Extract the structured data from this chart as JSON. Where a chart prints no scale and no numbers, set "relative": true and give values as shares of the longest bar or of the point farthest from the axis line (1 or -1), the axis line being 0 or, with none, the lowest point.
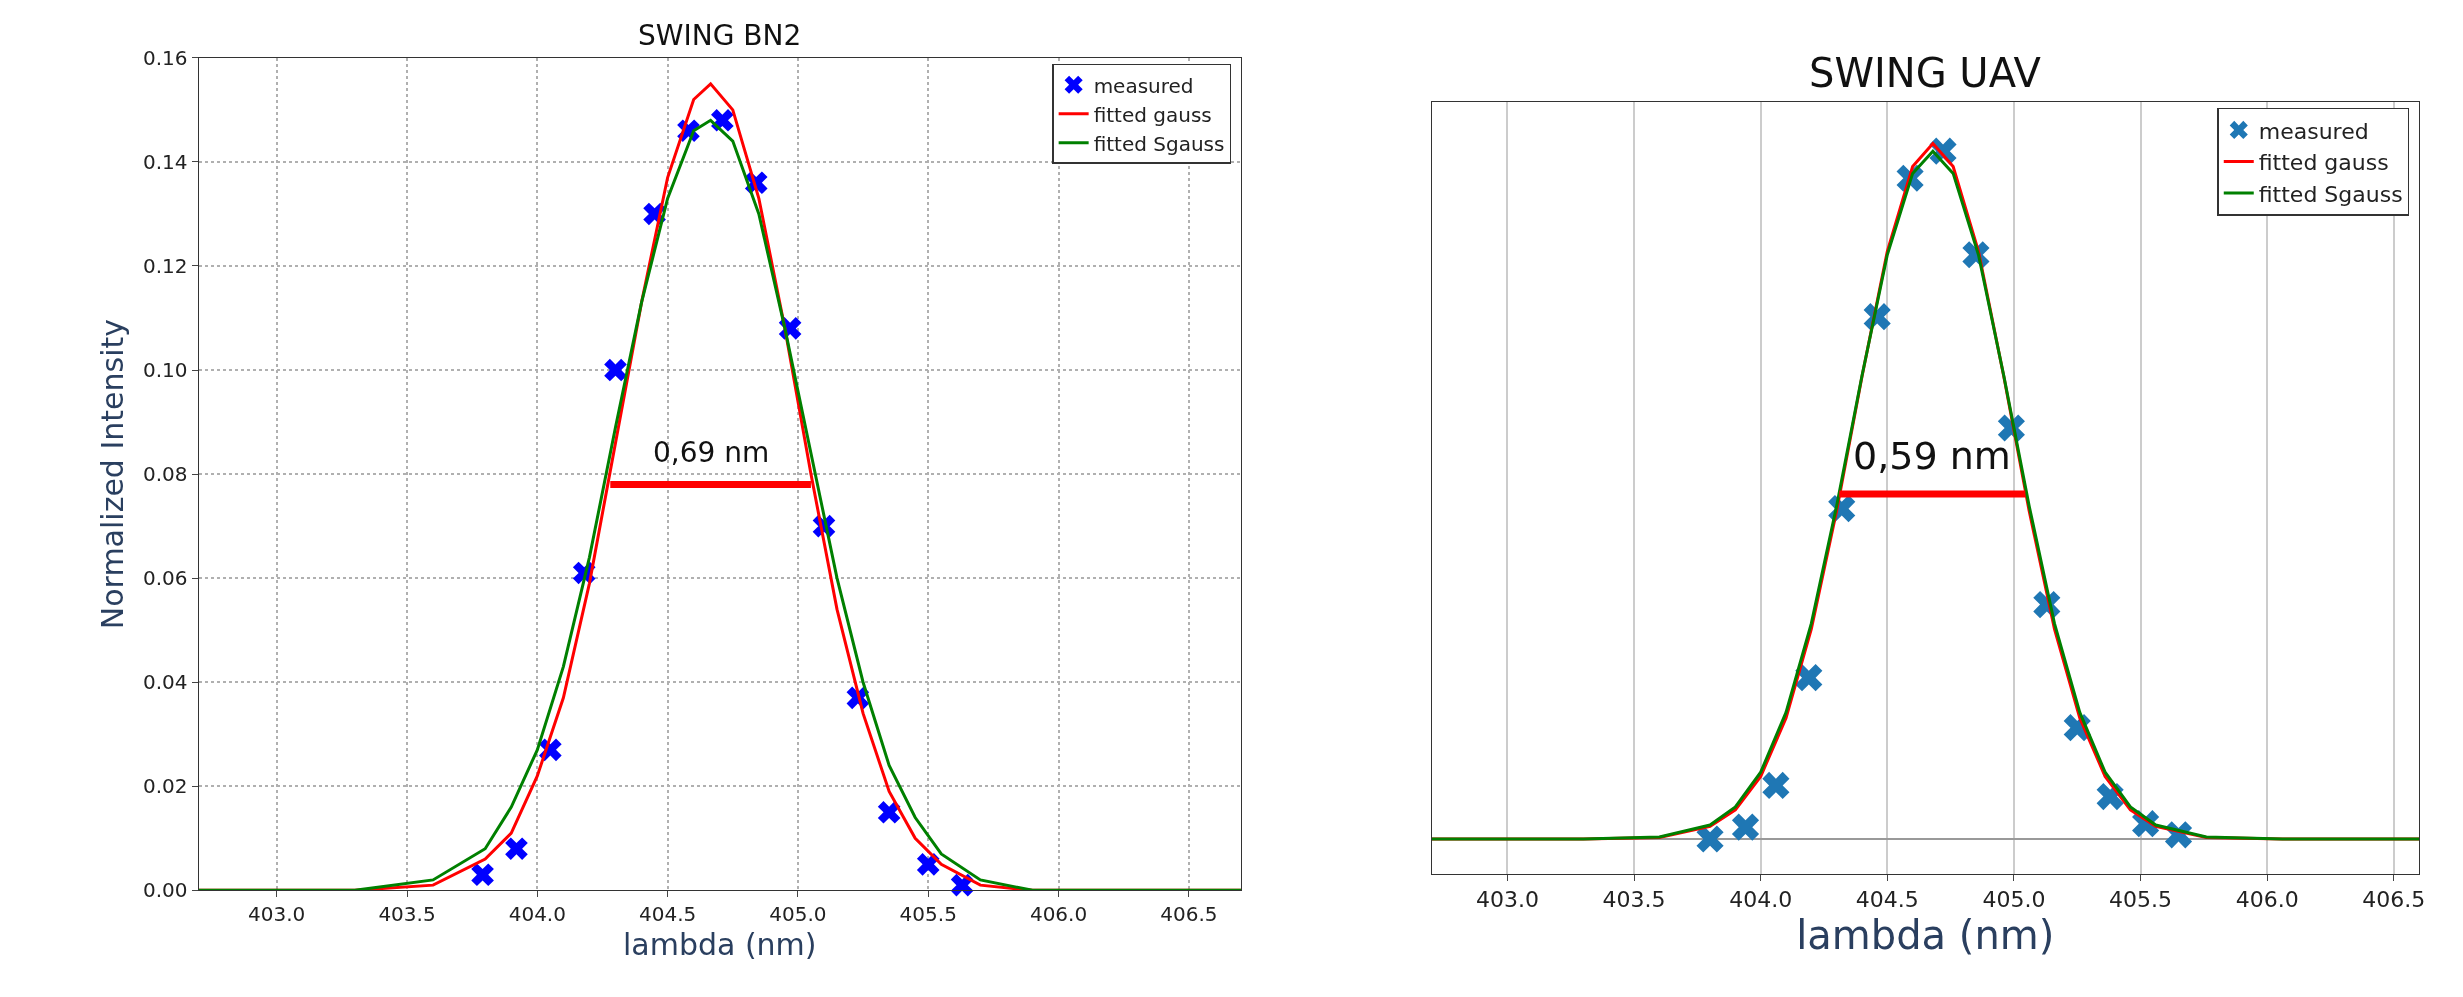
{
  "chart_data": [
    {
      "type": "scatter",
      "title": "SWING BN2",
      "xlabel": "lambda (nm)",
      "ylabel": "Normalized Intensity",
      "xlim": [
        402.7,
        406.7
      ],
      "ylim": [
        0,
        0.16
      ],
      "xticks": [
        {
          "value": 403,
          "label": "403.0"
        },
        {
          "value": 403.5,
          "label": "403.5"
        },
        {
          "value": 404,
          "label": "404.0"
        },
        {
          "value": 404.5,
          "label": "404.5"
        },
        {
          "value": 405,
          "label": "405.0"
        },
        {
          "value": 405.5,
          "label": "405.5"
        },
        {
          "value": 406,
          "label": "406.0"
        },
        {
          "value": 406.5,
          "label": "406.5"
        }
      ],
      "yticks": [
        {
          "value": 0,
          "label": "0.00"
        },
        {
          "value": 0.02,
          "label": "0.02"
        },
        {
          "value": 0.04,
          "label": "0.04"
        },
        {
          "value": 0.06,
          "label": "0.06"
        },
        {
          "value": 0.08,
          "label": "0.08"
        },
        {
          "value": 0.1,
          "label": "0.10"
        },
        {
          "value": 0.12,
          "label": "0.12"
        },
        {
          "value": 0.14,
          "label": "0.14"
        },
        {
          "value": 0.16,
          "label": "0.16"
        }
      ],
      "grid": true,
      "legend": "top right",
      "annotations": [
        "0,69 nm"
      ],
      "series": [
        {
          "name": "measured",
          "marker": "cross",
          "color": "#0000ff",
          "x": [
            403.79,
            403.92,
            404.05,
            404.18,
            404.3,
            404.45,
            404.58,
            404.71,
            404.84,
            404.97,
            405.1,
            405.23,
            405.35,
            405.5,
            405.63
          ],
          "values": [
            0.003,
            0.008,
            0.027,
            0.061,
            0.1,
            0.13,
            0.146,
            0.148,
            0.136,
            0.108,
            0.07,
            0.037,
            0.015,
            0.005,
            0.001
          ]
        },
        {
          "name": "fitted gauss",
          "type": "line",
          "color": "#ff0000",
          "x": [
            402.7,
            403.3,
            403.6,
            403.8,
            403.9,
            404.0,
            404.1,
            404.2,
            404.3,
            404.4,
            404.5,
            404.6,
            404.665,
            404.75,
            404.85,
            404.95,
            405.05,
            405.15,
            405.25,
            405.35,
            405.45,
            405.55,
            405.7,
            405.9,
            406.2,
            406.7
          ],
          "values": [
            0,
            0,
            0.001,
            0.006,
            0.011,
            0.022,
            0.037,
            0.059,
            0.086,
            0.113,
            0.137,
            0.152,
            0.155,
            0.15,
            0.133,
            0.108,
            0.08,
            0.054,
            0.034,
            0.019,
            0.01,
            0.005,
            0.001,
            0,
            0,
            0
          ]
        },
        {
          "name": "fitted Sgauss",
          "type": "line",
          "color": "#008000",
          "x": [
            402.7,
            403.3,
            403.6,
            403.8,
            403.9,
            404.0,
            404.1,
            404.2,
            404.3,
            404.4,
            404.5,
            404.6,
            404.665,
            404.75,
            404.85,
            404.95,
            405.05,
            405.15,
            405.25,
            405.35,
            405.45,
            405.55,
            405.7,
            405.9,
            406.2,
            406.7
          ],
          "values": [
            0,
            0,
            0.002,
            0.008,
            0.016,
            0.027,
            0.043,
            0.064,
            0.089,
            0.113,
            0.133,
            0.146,
            0.148,
            0.144,
            0.13,
            0.108,
            0.084,
            0.06,
            0.04,
            0.024,
            0.014,
            0.007,
            0.002,
            0,
            0,
            0
          ]
        },
        {
          "type": "line",
          "marker": "none",
          "color": "#ff0000",
          "x": [
            404.28,
            405.05
          ],
          "values": [
            0.078,
            0.078
          ]
        }
      ]
    },
    {
      "type": "scatter",
      "title": "SWING UAV",
      "xlabel": "lambda (nm)",
      "relative": true,
      "xlim": [
        402.7,
        406.6
      ],
      "xticks": [
        {
          "value": 403,
          "label": "403.0"
        },
        {
          "value": 403.5,
          "label": "403.5"
        },
        {
          "value": 404,
          "label": "404.0"
        },
        {
          "value": 404.5,
          "label": "404.5"
        },
        {
          "value": 405,
          "label": "405.0"
        },
        {
          "value": 405.5,
          "label": "405.5"
        },
        {
          "value": 406,
          "label": "406.0"
        },
        {
          "value": 406.5,
          "label": "406.5"
        }
      ],
      "grid": "x",
      "legend": "top right",
      "tick_labels": "x",
      "annotations": [
        "0,59 nm"
      ],
      "series": [
        {
          "name": "measured",
          "marker": "cross",
          "color": "#1f77b4",
          "x": [
            403.8,
            403.94,
            404.06,
            404.19,
            404.32,
            404.46,
            404.59,
            404.72,
            404.85,
            404.99,
            405.13,
            405.25,
            405.38,
            405.52,
            405.65
          ],
          "values": [
            0.0,
            0.017,
            0.077,
            0.232,
            0.475,
            0.751,
            0.95,
            0.989,
            0.84,
            0.591,
            0.337,
            0.16,
            0.061,
            0.022,
            0.006
          ]
        },
        {
          "name": "fitted gauss",
          "type": "line",
          "color": "#ff0000",
          "x": [
            402.7,
            403.3,
            403.6,
            403.8,
            403.9,
            404.0,
            404.1,
            404.2,
            404.3,
            404.4,
            404.5,
            404.6,
            404.68,
            404.76,
            404.86,
            404.96,
            405.06,
            405.16,
            405.26,
            405.36,
            405.46,
            405.56,
            405.76,
            406.06,
            406.6
          ],
          "values": [
            0,
            0,
            0.002,
            0.018,
            0.042,
            0.09,
            0.174,
            0.302,
            0.472,
            0.665,
            0.845,
            0.967,
            1,
            0.967,
            0.845,
            0.665,
            0.472,
            0.302,
            0.174,
            0.09,
            0.042,
            0.018,
            0.002,
            0,
            0
          ]
        },
        {
          "name": "fitted Sgauss",
          "type": "line",
          "color": "#008000",
          "x": [
            402.7,
            403.3,
            403.6,
            403.8,
            403.9,
            404.0,
            404.1,
            404.2,
            404.3,
            404.4,
            404.5,
            404.6,
            404.68,
            404.76,
            404.86,
            404.96,
            405.06,
            405.16,
            405.26,
            405.36,
            405.46,
            405.56,
            405.76,
            406.06,
            406.6
          ],
          "values": [
            0,
            0,
            0.003,
            0.02,
            0.046,
            0.096,
            0.182,
            0.31,
            0.479,
            0.666,
            0.84,
            0.957,
            0.989,
            0.957,
            0.84,
            0.666,
            0.479,
            0.31,
            0.182,
            0.096,
            0.046,
            0.02,
            0.003,
            0,
            0
          ]
        },
        {
          "type": "line",
          "marker": "none",
          "color": "#ff0000",
          "x": [
            404.31,
            405.045
          ],
          "values": [
            0.496,
            0.496
          ]
        }
      ]
    }
  ]
}
